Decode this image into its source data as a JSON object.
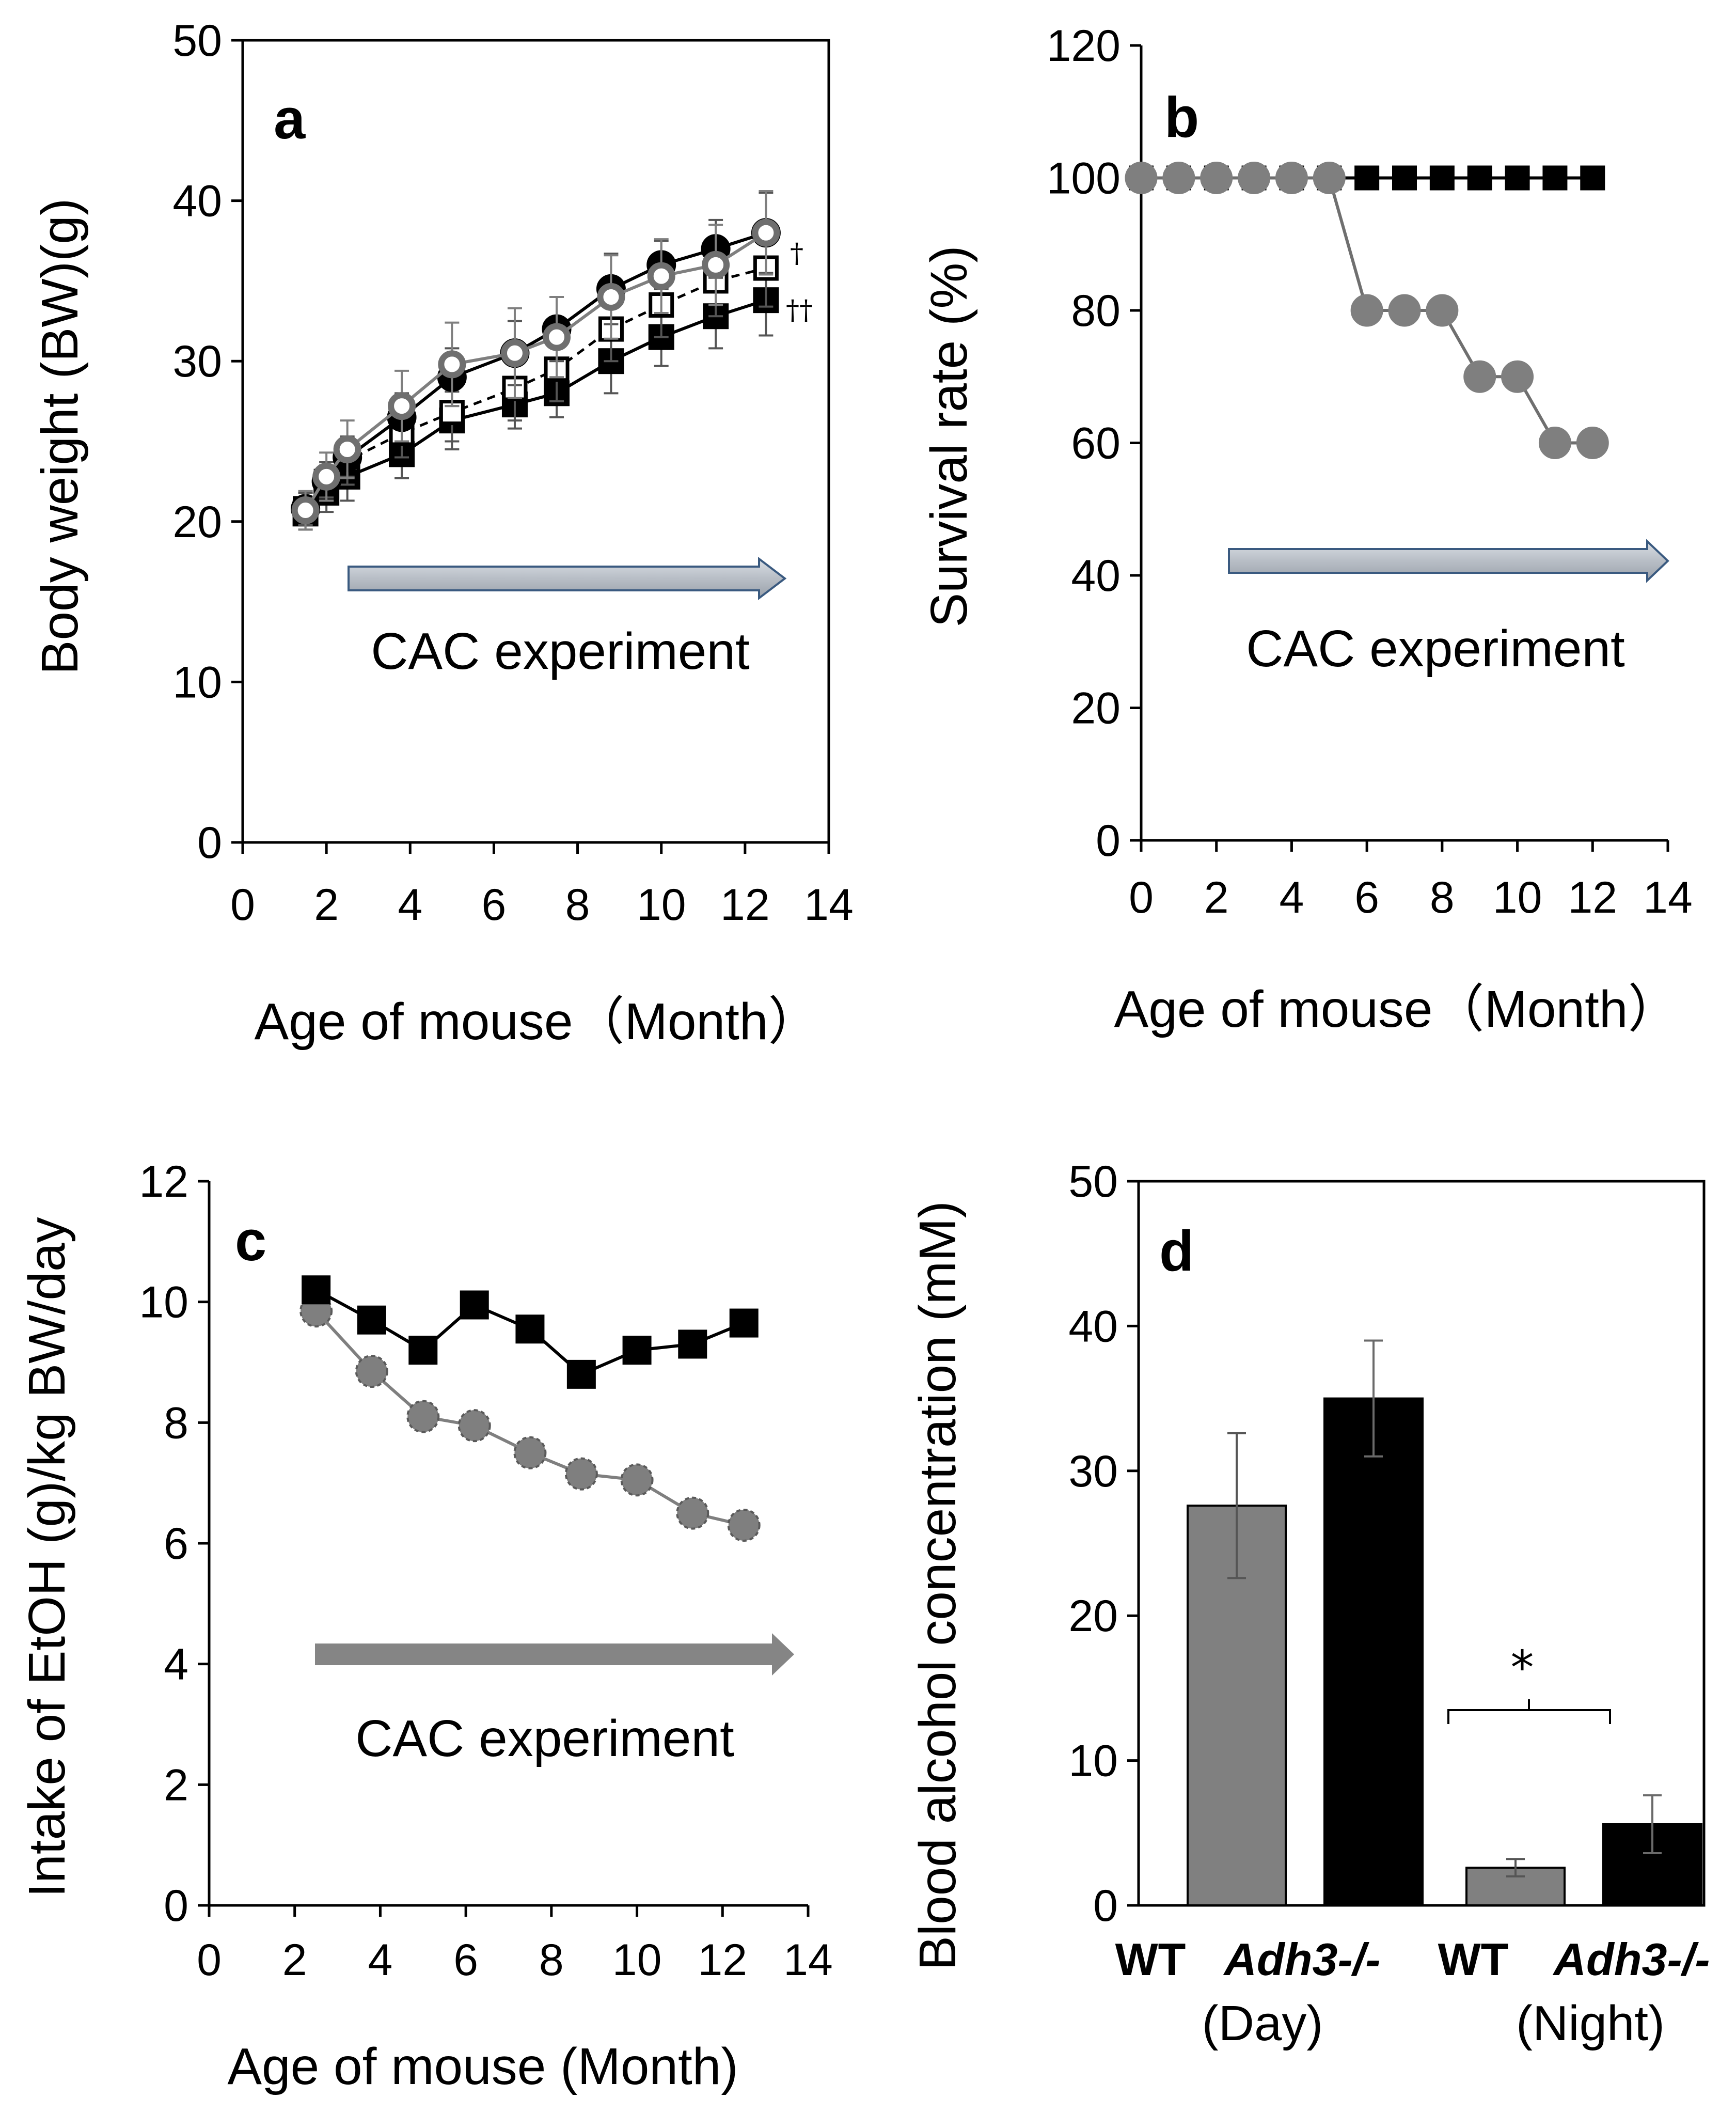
{
  "chart_data": [
    {
      "id": "a",
      "type": "line",
      "panel_label": "a",
      "ylabel": "Body weight (BW)(g)",
      "xlabel": "Age of mouse（Month）",
      "xlim": [
        0,
        14
      ],
      "ylim": [
        0,
        50
      ],
      "xticks": [
        "0",
        "2",
        "4",
        "6",
        "8",
        "10",
        "12",
        "14"
      ],
      "yticks": [
        "0",
        "10",
        "20",
        "30",
        "40",
        "50"
      ],
      "x": [
        1.5,
        2.0,
        2.5,
        3.8,
        5.0,
        6.5,
        7.5,
        8.8,
        10.0,
        11.3,
        12.5
      ],
      "series": [
        {
          "name": "filled-circle",
          "marker": "circle-filled",
          "line": "solid",
          "color": "#000000",
          "values": [
            20.8,
            22.5,
            24.0,
            26.5,
            29.0,
            30.5,
            32.0,
            34.5,
            36.0,
            37.0,
            38.0
          ],
          "errors": [
            1.0,
            1.0,
            1.2,
            1.5,
            1.8,
            2.0,
            2.0,
            2.2,
            1.5,
            1.8,
            2.5
          ]
        },
        {
          "name": "open-circle",
          "marker": "circle-open",
          "line": "solid",
          "color": "#595959",
          "values": [
            20.7,
            22.8,
            24.5,
            27.2,
            29.8,
            30.5,
            31.5,
            34.0,
            35.3,
            36.0,
            38.0
          ],
          "errors": [
            1.2,
            1.5,
            1.8,
            2.2,
            2.6,
            2.8,
            2.5,
            2.6,
            2.3,
            2.5,
            2.6
          ]
        },
        {
          "name": "open-square",
          "marker": "square-open",
          "line": "dashed",
          "color": "#000000",
          "values": [
            20.8,
            22.5,
            23.8,
            25.5,
            26.8,
            28.3,
            29.5,
            32.0,
            33.5,
            35.0,
            35.8
          ],
          "errors": [
            1.0,
            1.2,
            1.5,
            1.5,
            1.8,
            2.0,
            2.0,
            2.0,
            2.0,
            2.2,
            2.4
          ]
        },
        {
          "name": "filled-square",
          "marker": "square-filled",
          "line": "solid",
          "color": "#000000",
          "values": [
            20.5,
            21.8,
            22.8,
            24.2,
            26.3,
            27.3,
            28.0,
            30.0,
            31.5,
            32.8,
            33.8
          ],
          "errors": [
            1.0,
            1.2,
            1.5,
            1.5,
            1.8,
            1.5,
            1.5,
            2.0,
            1.8,
            2.0,
            2.2
          ]
        }
      ],
      "annotations": [
        "†",
        "††"
      ],
      "arrow_text": "CAC experiment"
    },
    {
      "id": "b",
      "type": "line",
      "panel_label": "b",
      "ylabel": "Survival rate (%)",
      "xlabel": "Age of mouse（Month）",
      "xlim": [
        0,
        14
      ],
      "ylim": [
        0,
        120
      ],
      "xticks": [
        "0",
        "2",
        "4",
        "6",
        "8",
        "10",
        "12",
        "14"
      ],
      "yticks": [
        "0",
        "20",
        "40",
        "60",
        "80",
        "100",
        "120"
      ],
      "x": [
        0,
        1,
        2,
        3,
        4,
        5,
        6,
        7,
        8,
        9,
        10,
        11,
        12
      ],
      "series": [
        {
          "name": "filled-square",
          "marker": "square-filled",
          "color": "#000000",
          "values": [
            100,
            100,
            100,
            100,
            100,
            100,
            100,
            100,
            100,
            100,
            100,
            100,
            100
          ]
        },
        {
          "name": "gray-circle",
          "marker": "circle-filled",
          "color": "#7f7f7f",
          "values": [
            100,
            100,
            100,
            100,
            100,
            100,
            80,
            80,
            80,
            70,
            70,
            60,
            60
          ]
        }
      ],
      "arrow_text": "CAC experiment"
    },
    {
      "id": "c",
      "type": "line",
      "panel_label": "c",
      "ylabel": "Intake of EtOH (g)/kg BW/day",
      "xlabel": "Age of mouse (Month)",
      "xlim": [
        0,
        14
      ],
      "ylim": [
        0,
        12
      ],
      "xticks": [
        "0",
        "2",
        "4",
        "6",
        "8",
        "10",
        "12",
        "14"
      ],
      "yticks": [
        "0",
        "2",
        "4",
        "6",
        "8",
        "10",
        "12"
      ],
      "x": [
        2.5,
        3.8,
        5.0,
        6.2,
        7.5,
        8.7,
        10.0,
        11.3,
        12.5
      ],
      "series": [
        {
          "name": "filled-square",
          "marker": "square-filled",
          "color": "#000000",
          "values": [
            10.2,
            9.7,
            9.2,
            9.95,
            9.55,
            8.8,
            9.2,
            9.3,
            9.65
          ]
        },
        {
          "name": "gray-circle",
          "marker": "circle-filled",
          "color": "#7f7f7f",
          "values": [
            9.85,
            8.85,
            8.1,
            7.95,
            7.5,
            7.15,
            7.05,
            6.5,
            6.3
          ]
        }
      ],
      "arrow_text": "CAC experiment"
    },
    {
      "id": "d",
      "type": "bar",
      "panel_label": "d",
      "ylabel": "Blood alcohol concentration (mM)",
      "ylim": [
        0,
        50
      ],
      "yticks": [
        "0",
        "10",
        "20",
        "30",
        "40",
        "50"
      ],
      "categories": [
        "WT",
        "Adh3-/-",
        "WT",
        "Adh3-/-"
      ],
      "groups": [
        "(Day)",
        "(Night)"
      ],
      "values": [
        27.6,
        35.0,
        2.6,
        5.6
      ],
      "errors": [
        5.0,
        4.0,
        0.6,
        2.0
      ],
      "colors": [
        "#808080",
        "#000000",
        "#808080",
        "#000000"
      ],
      "significance": "*"
    }
  ]
}
